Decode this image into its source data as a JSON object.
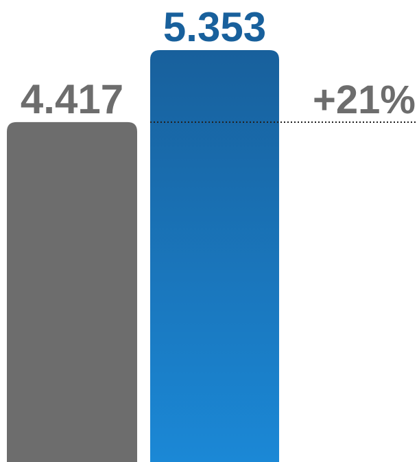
{
  "chart_data": {
    "type": "bar",
    "categories": [
      "",
      ""
    ],
    "values": [
      4.417,
      5.353
    ],
    "value_labels": [
      "4.417",
      "5.353"
    ],
    "change_label": "+21%",
    "reference_line": {
      "value": 4.417,
      "style": "dotted"
    },
    "ylim": [
      0,
      5.353
    ],
    "grid": false,
    "axes_visible": false,
    "colors": {
      "bars": [
        "#6d6d6d",
        "#1a83d0"
      ],
      "bar_gradient_top": "#18609c",
      "bar_gradient_bottom": "#1b88d6",
      "value_labels": [
        "#6d6d6d",
        "#18609c"
      ],
      "change_label": "#6d6d6d",
      "reference_line": "#222222"
    }
  }
}
